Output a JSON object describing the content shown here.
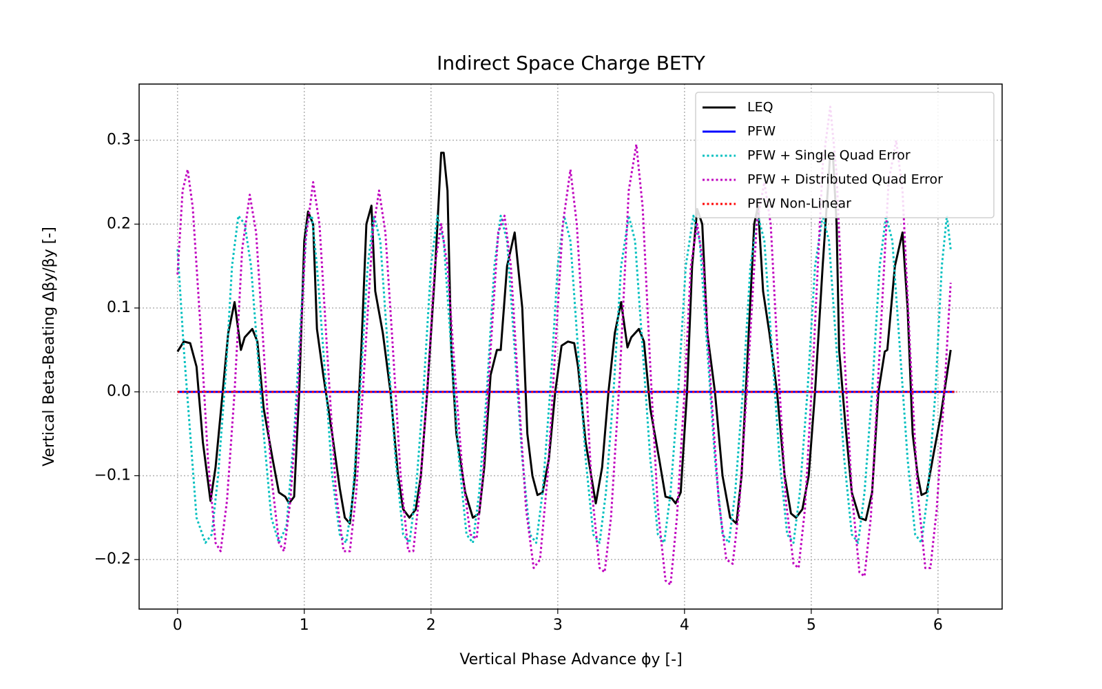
{
  "chart_data": {
    "type": "line",
    "title": "Indirect Space Charge BETY",
    "xlabel": "Vertical Phase Advance ϕy [-]",
    "ylabel": "Vertical Beta-Beating Δβy/βy [-]",
    "xlim": [
      -0.303,
      6.506
    ],
    "ylim": [
      -0.259,
      0.367
    ],
    "xticks": [
      0,
      1,
      2,
      3,
      4,
      5,
      6
    ],
    "yticks": [
      {
        "value": -0.2,
        "label": "−0.2"
      },
      {
        "value": -0.1,
        "label": "−0.1"
      },
      {
        "value": 0,
        "label": "0.0"
      },
      0.1,
      0.2,
      0.3
    ],
    "grid": true,
    "legend": "upper right",
    "series": [
      {
        "name": "LEQ",
        "color": "#000000",
        "linestyle": "solid",
        "x": [
          0,
          0.05,
          0.1,
          0.15,
          0.2,
          0.26,
          0.3,
          0.35,
          0.4,
          0.45,
          0.5,
          0.53,
          0.59,
          0.63,
          0.68,
          0.75,
          0.8,
          0.85,
          0.88,
          0.92,
          0.96,
          1.0,
          1.03,
          1.07,
          1.1,
          1.15,
          1.22,
          1.28,
          1.32,
          1.36,
          1.4,
          1.45,
          1.49,
          1.53,
          1.56,
          1.62,
          1.68,
          1.74,
          1.78,
          1.83,
          1.88,
          1.92,
          1.97,
          2.03,
          2.08,
          2.1,
          2.13,
          2.16,
          2.2,
          2.27,
          2.33,
          2.38,
          2.42,
          2.47,
          2.52,
          2.55,
          2.6,
          2.66,
          2.72,
          2.76,
          2.8,
          2.84,
          2.88,
          2.93,
          2.98,
          3.03,
          3.08,
          3.13,
          3.16,
          3.22,
          3.3,
          3.35,
          3.4,
          3.45,
          3.5,
          3.55,
          3.58,
          3.64,
          3.68,
          3.73,
          3.8,
          3.85,
          3.9,
          3.93,
          3.97,
          4.02,
          4.06,
          4.1,
          4.14,
          4.18,
          4.24,
          4.3,
          4.36,
          4.41,
          4.45,
          4.5,
          4.55,
          4.58,
          4.62,
          4.67,
          4.73,
          4.79,
          4.84,
          4.88,
          4.93,
          4.98,
          5.03,
          5.09,
          5.15,
          5.17,
          5.2,
          5.22,
          5.27,
          5.32,
          5.38,
          5.43,
          5.48,
          5.53,
          5.58,
          5.6,
          5.66,
          5.72,
          5.76,
          5.8,
          5.84,
          5.87,
          5.91,
          5.97,
          6.02,
          6.1
        ],
        "values": [
          0.048,
          0.06,
          0.058,
          0.03,
          -0.06,
          -0.13,
          -0.09,
          -0.01,
          0.07,
          0.107,
          0.05,
          0.065,
          0.075,
          0.06,
          -0.02,
          -0.08,
          -0.12,
          -0.125,
          -0.133,
          -0.125,
          0.0,
          0.18,
          0.215,
          0.2,
          0.075,
          0.02,
          -0.05,
          -0.115,
          -0.15,
          -0.157,
          -0.1,
          0.05,
          0.2,
          0.222,
          0.12,
          0.07,
          0.0,
          -0.1,
          -0.14,
          -0.15,
          -0.14,
          -0.1,
          0.0,
          0.14,
          0.285,
          0.285,
          0.24,
          0.05,
          -0.05,
          -0.12,
          -0.15,
          -0.145,
          -0.09,
          0.02,
          0.05,
          0.05,
          0.15,
          0.19,
          0.1,
          -0.05,
          -0.1,
          -0.123,
          -0.12,
          -0.08,
          0.0,
          0.055,
          0.06,
          0.058,
          0.03,
          -0.06,
          -0.133,
          -0.09,
          0.0,
          0.07,
          0.107,
          0.053,
          0.065,
          0.075,
          0.06,
          -0.02,
          -0.08,
          -0.125,
          -0.127,
          -0.133,
          -0.12,
          0.0,
          0.15,
          0.218,
          0.2,
          0.07,
          0.0,
          -0.1,
          -0.15,
          -0.157,
          -0.1,
          0.05,
          0.2,
          0.222,
          0.12,
          0.07,
          0.0,
          -0.1,
          -0.145,
          -0.15,
          -0.14,
          -0.1,
          0.0,
          0.15,
          0.285,
          0.285,
          0.2,
          0.05,
          -0.04,
          -0.12,
          -0.15,
          -0.153,
          -0.12,
          0.0,
          0.048,
          0.05,
          0.15,
          0.19,
          0.1,
          -0.05,
          -0.1,
          -0.123,
          -0.12,
          -0.07,
          -0.03,
          0.05
        ]
      },
      {
        "name": "PFW",
        "color": "#0000ff",
        "linestyle": "solid",
        "x": [
          0,
          6.13
        ],
        "values": [
          0,
          0
        ]
      },
      {
        "name": "PFW + Single Quad Error",
        "color": "#00bfbf",
        "linestyle": "dotted",
        "x": [
          0,
          0.05,
          0.1,
          0.15,
          0.22,
          0.27,
          0.32,
          0.38,
          0.43,
          0.48,
          0.53,
          0.58,
          0.63,
          0.68,
          0.74,
          0.8,
          0.86,
          0.92,
          0.97,
          1.02,
          1.06,
          1.1,
          1.16,
          1.22,
          1.28,
          1.33,
          1.38,
          1.44,
          1.5,
          1.55,
          1.6,
          1.66,
          1.72,
          1.78,
          1.83,
          1.88,
          1.94,
          2.0,
          2.05,
          2.1,
          2.16,
          2.22,
          2.28,
          2.33,
          2.38,
          2.44,
          2.5,
          2.55,
          2.6,
          2.66,
          2.72,
          2.78,
          2.83,
          2.88,
          2.94,
          3.0,
          3.05,
          3.1,
          3.16,
          3.22,
          3.28,
          3.33,
          3.38,
          3.44,
          3.5,
          3.56,
          3.61,
          3.67,
          3.73,
          3.79,
          3.84,
          3.89,
          3.95,
          4.01,
          4.07,
          4.12,
          4.18,
          4.24,
          4.3,
          4.35,
          4.4,
          4.46,
          4.52,
          4.58,
          4.63,
          4.69,
          4.75,
          4.81,
          4.86,
          4.91,
          4.97,
          5.03,
          5.09,
          5.14,
          5.2,
          5.26,
          5.32,
          5.37,
          5.42,
          5.48,
          5.54,
          5.59,
          5.64,
          5.7,
          5.76,
          5.82,
          5.87,
          5.92,
          5.98,
          6.03,
          6.07,
          6.1
        ],
        "values": [
          0.17,
          0.05,
          -0.05,
          -0.15,
          -0.18,
          -0.17,
          -0.1,
          0.02,
          0.15,
          0.21,
          0.2,
          0.15,
          0.05,
          -0.05,
          -0.15,
          -0.18,
          -0.16,
          -0.05,
          0.08,
          0.2,
          0.21,
          0.15,
          0.03,
          -0.1,
          -0.17,
          -0.18,
          -0.13,
          0.0,
          0.15,
          0.21,
          0.18,
          0.05,
          -0.08,
          -0.17,
          -0.18,
          -0.12,
          0.0,
          0.15,
          0.21,
          0.18,
          0.05,
          -0.08,
          -0.17,
          -0.18,
          -0.12,
          0.0,
          0.15,
          0.21,
          0.18,
          0.05,
          -0.08,
          -0.17,
          -0.18,
          -0.12,
          0.0,
          0.15,
          0.21,
          0.18,
          0.05,
          -0.08,
          -0.17,
          -0.18,
          -0.12,
          0.0,
          0.15,
          0.21,
          0.18,
          0.05,
          -0.08,
          -0.17,
          -0.18,
          -0.12,
          0.0,
          0.15,
          0.21,
          0.18,
          0.05,
          -0.08,
          -0.17,
          -0.18,
          -0.12,
          0.0,
          0.15,
          0.21,
          0.18,
          0.05,
          -0.08,
          -0.17,
          -0.18,
          -0.12,
          0.0,
          0.15,
          0.21,
          0.18,
          0.05,
          -0.08,
          -0.17,
          -0.18,
          -0.12,
          0.0,
          0.15,
          0.21,
          0.18,
          0.05,
          -0.08,
          -0.17,
          -0.18,
          -0.12,
          0.0,
          0.15,
          0.21,
          0.17
        ]
      },
      {
        "name": "PFW + Distributed Quad Error",
        "color": "#bf00bf",
        "linestyle": "dotted",
        "x": [
          0,
          0.04,
          0.08,
          0.12,
          0.18,
          0.24,
          0.3,
          0.34,
          0.39,
          0.45,
          0.51,
          0.57,
          0.62,
          0.68,
          0.74,
          0.8,
          0.84,
          0.89,
          0.95,
          1.01,
          1.07,
          1.12,
          1.18,
          1.25,
          1.31,
          1.36,
          1.41,
          1.47,
          1.54,
          1.59,
          1.64,
          1.7,
          1.76,
          1.82,
          1.86,
          1.91,
          1.97,
          2.03,
          2.08,
          2.13,
          2.19,
          2.25,
          2.31,
          2.36,
          2.41,
          2.47,
          2.53,
          2.58,
          2.63,
          2.69,
          2.75,
          2.81,
          2.86,
          2.92,
          2.98,
          3.04,
          3.1,
          3.15,
          3.21,
          3.27,
          3.33,
          3.37,
          3.42,
          3.49,
          3.56,
          3.62,
          3.67,
          3.73,
          3.79,
          3.85,
          3.89,
          3.94,
          4.0,
          4.05,
          4.1,
          4.15,
          4.21,
          4.27,
          4.33,
          4.38,
          4.43,
          4.5,
          4.57,
          4.63,
          4.68,
          4.74,
          4.8,
          4.86,
          4.9,
          4.95,
          5.02,
          5.09,
          5.15,
          5.2,
          5.26,
          5.32,
          5.38,
          5.42,
          5.47,
          5.54,
          5.61,
          5.67,
          5.72,
          5.78,
          5.84,
          5.9,
          5.94,
          5.99,
          6.05,
          6.1
        ],
        "values": [
          0.14,
          0.24,
          0.265,
          0.22,
          0.08,
          -0.08,
          -0.18,
          -0.19,
          -0.13,
          0.0,
          0.17,
          0.235,
          0.19,
          0.05,
          -0.1,
          -0.18,
          -0.19,
          -0.13,
          0.0,
          0.18,
          0.25,
          0.2,
          0.05,
          -0.12,
          -0.19,
          -0.19,
          -0.12,
          0.02,
          0.19,
          0.24,
          0.19,
          0.05,
          -0.1,
          -0.19,
          -0.19,
          -0.12,
          0.0,
          0.15,
          0.2,
          0.15,
          0.02,
          -0.1,
          -0.17,
          -0.175,
          -0.1,
          0.05,
          0.19,
          0.21,
          0.15,
          0.0,
          -0.14,
          -0.21,
          -0.2,
          -0.1,
          0.05,
          0.2,
          0.265,
          0.2,
          0.05,
          -0.12,
          -0.21,
          -0.215,
          -0.15,
          0.02,
          0.24,
          0.295,
          0.22,
          0.03,
          -0.14,
          -0.225,
          -0.23,
          -0.15,
          0.0,
          0.15,
          0.2,
          0.15,
          0.0,
          -0.13,
          -0.2,
          -0.205,
          -0.14,
          0.02,
          0.2,
          0.25,
          0.2,
          0.03,
          -0.13,
          -0.205,
          -0.21,
          -0.14,
          0.05,
          0.27,
          0.34,
          0.26,
          0.05,
          -0.12,
          -0.215,
          -0.22,
          -0.15,
          0.05,
          0.25,
          0.3,
          0.24,
          0.05,
          -0.12,
          -0.21,
          -0.21,
          -0.14,
          0.0,
          0.13
        ]
      },
      {
        "name": "PFW Non-Linear",
        "color": "#ff0000",
        "linestyle": "dotted",
        "x": [
          0,
          6.15
        ],
        "values": [
          0,
          0
        ]
      }
    ]
  }
}
